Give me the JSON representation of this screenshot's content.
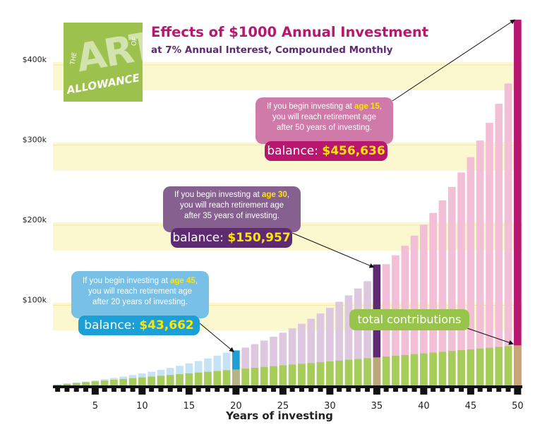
{
  "title": "Effects of $1000 Annual Investment",
  "subtitle": "at 7% Annual Interest, Compounded Monthly",
  "logo": {
    "the": "THE",
    "art": "ART",
    "of": "OF",
    "allowance": "ALLOWANCE"
  },
  "callouts": {
    "age15": {
      "pre": "If you begin investing at ",
      "age": "age 15",
      "line2": "you will reach retirement age",
      "line3": "after 50 years of investing.",
      "balance_label": "balance: ",
      "balance_value": "$456,636"
    },
    "age30": {
      "pre": "If you begin investing at ",
      "age": "age 30",
      "line2": "you will reach retirement age",
      "line3": "after 35 years of investing.",
      "balance_label": "balance: ",
      "balance_value": "$150,957"
    },
    "age45": {
      "pre": "If you begin investing at ",
      "age": "age 45",
      "line2": "you will reach retirement age",
      "line3": "after 20 years of investing.",
      "balance_label": "balance: ",
      "balance_value": "$43,662"
    },
    "contributions": "total contributions"
  },
  "chart_data": {
    "type": "bar",
    "title": "Effects of $1000 Annual Investment",
    "subtitle": "at 7% Annual Interest, Compounded Monthly",
    "xlabel": "Years of investing",
    "ylabel": "",
    "x": [
      1,
      2,
      3,
      4,
      5,
      6,
      7,
      8,
      9,
      10,
      11,
      12,
      13,
      14,
      15,
      16,
      17,
      18,
      19,
      20,
      21,
      22,
      23,
      24,
      25,
      26,
      27,
      28,
      29,
      30,
      31,
      32,
      33,
      34,
      35,
      36,
      37,
      38,
      39,
      40,
      41,
      42,
      43,
      44,
      45,
      46,
      47,
      48,
      49,
      50
    ],
    "ylim": [
      0,
      460000
    ],
    "yticks": [
      100000,
      200000,
      300000,
      400000
    ],
    "ytick_labels": [
      "$100k",
      "$200k",
      "$300k",
      "$400k"
    ],
    "xticks": [
      5,
      10,
      15,
      20,
      25,
      30,
      35,
      40,
      45,
      50
    ],
    "grid": "alternating horizontal bands",
    "series": [
      {
        "name": "balance",
        "values": [
          1072,
          2221,
          3452,
          4772,
          6187,
          7705,
          9331,
          11074,
          12943,
          14946,
          17093,
          19395,
          21862,
          24508,
          27343,
          30383,
          33642,
          37136,
          40882,
          43662,
          47200,
          51500,
          56000,
          60700,
          65800,
          71200,
          77000,
          83200,
          89800,
          96800,
          104400,
          112400,
          121000,
          130200,
          150957,
          151300,
          162400,
          174300,
          187000,
          200700,
          215300,
          231000,
          247800,
          265800,
          285000,
          305700,
          327800,
          351500,
          376900,
          456636
        ]
      },
      {
        "name": "total contributions",
        "values": [
          1000,
          2000,
          3000,
          4000,
          5000,
          6000,
          7000,
          8000,
          9000,
          10000,
          11000,
          12000,
          13000,
          14000,
          15000,
          16000,
          17000,
          18000,
          19000,
          20000,
          21000,
          22000,
          23000,
          24000,
          25000,
          26000,
          27000,
          28000,
          29000,
          30000,
          31000,
          32000,
          33000,
          34000,
          35000,
          36000,
          37000,
          38000,
          39000,
          40000,
          41000,
          42000,
          43000,
          44000,
          45000,
          46000,
          47000,
          48000,
          49000,
          50000
        ]
      }
    ],
    "highlights": [
      {
        "year": 20,
        "value": 43662,
        "color": "#1c9fd4"
      },
      {
        "year": 35,
        "value": 150957,
        "color": "#5e2a72"
      },
      {
        "year": 50,
        "value": 456636,
        "color": "#b8166f"
      }
    ],
    "colors": {
      "early": "#c5e3f5",
      "middle": "#ddc8df",
      "late": "#f2bfd6",
      "contrib": "#a6cd5a",
      "band": "#fbf7cf"
    }
  }
}
